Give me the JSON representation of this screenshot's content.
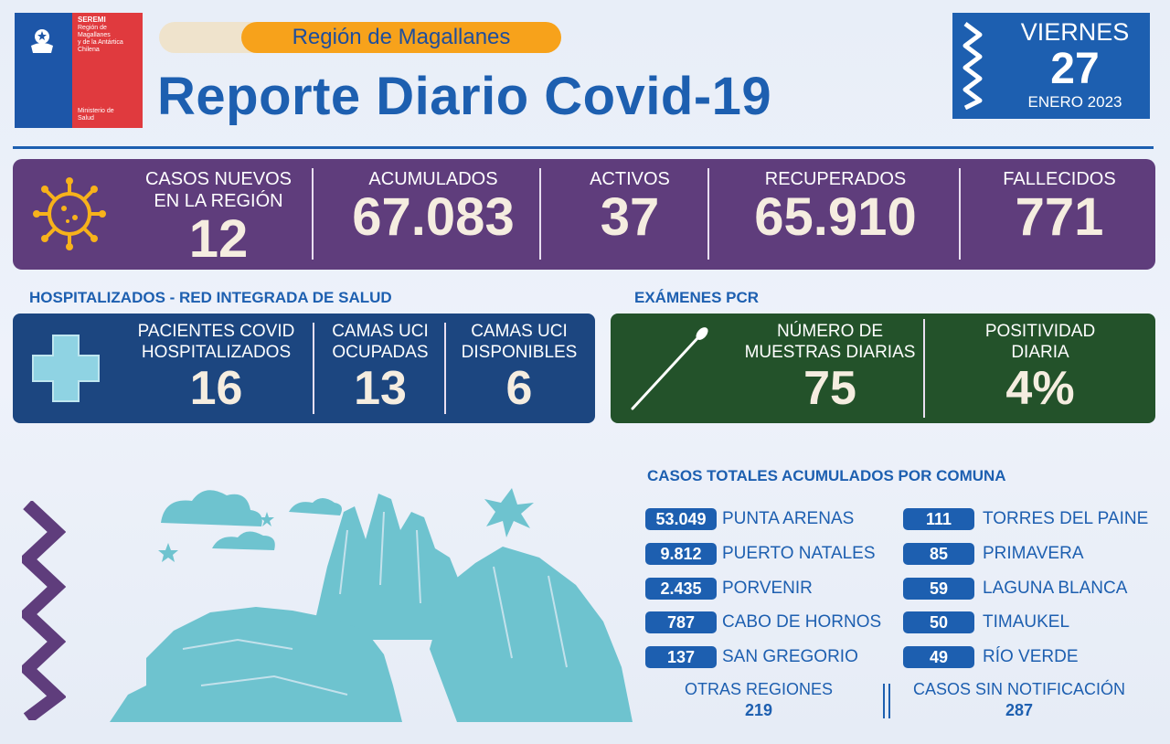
{
  "logo": {
    "line1": "SEREMI",
    "line2": "Región de Magallanes",
    "line3": "y de la Antártica",
    "line4": "Chilena",
    "line5": "Ministerio de",
    "line6": "Salud"
  },
  "header": {
    "region": "Región de Magallanes",
    "title": "Reporte Diario Covid-19"
  },
  "date": {
    "day_name": "VIERNES",
    "day_number": "27",
    "month_year": "ENERO 2023"
  },
  "summary": [
    {
      "label_line1": "CASOS NUEVOS",
      "label_line2": "EN LA REGIÓN",
      "value": "12"
    },
    {
      "label_line1": "ACUMULADOS",
      "label_line2": "",
      "value": "67.083"
    },
    {
      "label_line1": "ACTIVOS",
      "label_line2": "",
      "value": "37"
    },
    {
      "label_line1": "RECUPERADOS",
      "label_line2": "",
      "value": "65.910"
    },
    {
      "label_line1": "FALLECIDOS",
      "label_line2": "",
      "value": "771"
    }
  ],
  "hospital": {
    "title": "HOSPITALIZADOS - RED INTEGRADA DE SALUD",
    "cells": [
      {
        "label_line1": "PACIENTES COVID",
        "label_line2": "HOSPITALIZADOS",
        "value": "16"
      },
      {
        "label_line1": "CAMAS UCI",
        "label_line2": "OCUPADAS",
        "value": "13"
      },
      {
        "label_line1": "CAMAS UCI",
        "label_line2": "DISPONIBLES",
        "value": "6"
      }
    ]
  },
  "pcr": {
    "title": "EXÁMENES PCR",
    "cells": [
      {
        "label_line1": "NÚMERO DE",
        "label_line2": "MUESTRAS DIARIAS",
        "value": "75"
      },
      {
        "label_line1": "POSITIVIDAD",
        "label_line2": "DIARIA",
        "value": "4%"
      }
    ]
  },
  "comunas": {
    "title": "CASOS TOTALES ACUMULADOS POR COMUNA",
    "left": [
      {
        "value": "53.049",
        "name": "PUNTA ARENAS"
      },
      {
        "value": "9.812",
        "name": "PUERTO NATALES"
      },
      {
        "value": "2.435",
        "name": "PORVENIR"
      },
      {
        "value": "787",
        "name": "CABO DE HORNOS"
      },
      {
        "value": "137",
        "name": "SAN GREGORIO"
      }
    ],
    "right": [
      {
        "value": "111",
        "name": "TORRES DEL PAINE"
      },
      {
        "value": "85",
        "name": "PRIMAVERA"
      },
      {
        "value": "59",
        "name": "LAGUNA BLANCA"
      },
      {
        "value": "50",
        "name": "TIMAUKEL"
      },
      {
        "value": "49",
        "name": "RÍO VERDE"
      }
    ],
    "otras_label": "OTRAS REGIONES",
    "otras_value": "219",
    "sin_label": "CASOS SIN NOTIFICACIÓN",
    "sin_value": "287"
  },
  "colors": {
    "blue": "#1d5fb0",
    "purple": "#5f3d7c",
    "navy": "#1c4680",
    "green": "#23522a",
    "orange": "#f7a21b",
    "red": "#e03a3e",
    "landscape": "#6ec3cf"
  }
}
